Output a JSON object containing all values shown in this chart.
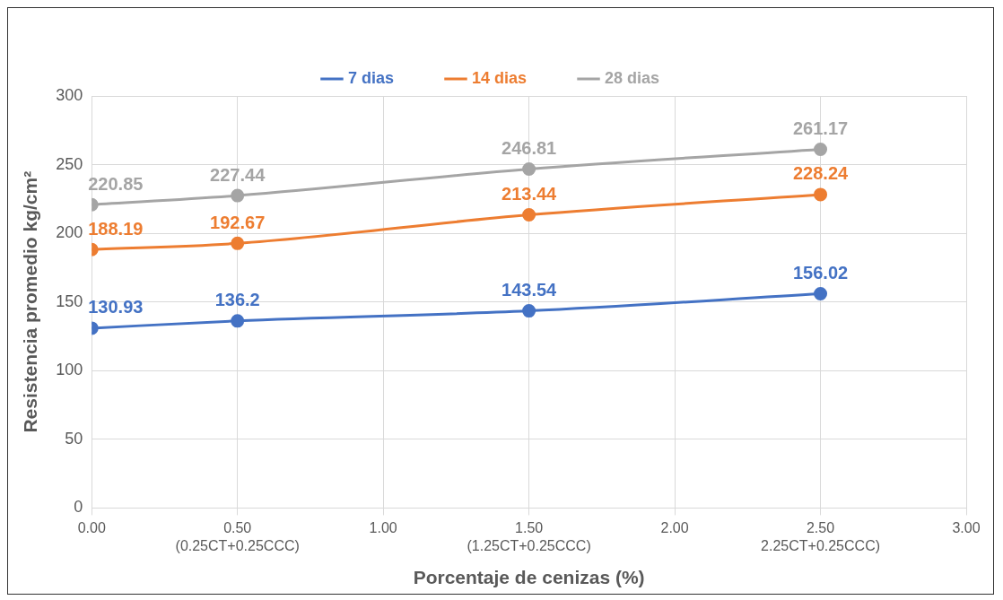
{
  "chart_data": {
    "type": "line",
    "xlabel": "Porcentaje de cenizas (%)",
    "ylabel": "Resistencia promedio kg/cm²",
    "x": [
      0,
      0.5,
      1.5,
      2.5
    ],
    "series": [
      {
        "name": "7 dias",
        "color": "#4472c4",
        "values": [
          130.93,
          136.2,
          143.54,
          156.02
        ]
      },
      {
        "name": "14 dias",
        "color": "#ed7d31",
        "values": [
          188.19,
          192.67,
          213.44,
          228.24
        ]
      },
      {
        "name": "28 dias",
        "color": "#a5a5a5",
        "values": [
          220.85,
          227.44,
          246.81,
          261.17
        ]
      }
    ],
    "xlim": [
      0,
      3
    ],
    "xticks": [
      {
        "value": 0,
        "label": "0.00"
      },
      {
        "value": 0.5,
        "label": "0.50\n(0.25CT+0.25CCC)"
      },
      {
        "value": 1,
        "label": "1.00"
      },
      {
        "value": 1.5,
        "label": "1.50\n(1.25CT+0.25CCC)"
      },
      {
        "value": 2,
        "label": "2.00"
      },
      {
        "value": 2.5,
        "label": "2.50\n2.25CT+0.25CCC)"
      },
      {
        "value": 3,
        "label": "3.00"
      }
    ],
    "ylim": [
      0,
      300
    ],
    "yticks": [
      0,
      50,
      100,
      150,
      200,
      250,
      300
    ],
    "data_labels": true,
    "grid": true,
    "legend": "top",
    "marker": "circle",
    "line_style": "solid"
  }
}
